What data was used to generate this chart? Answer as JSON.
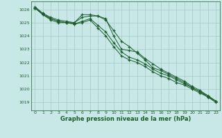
{
  "xlabel": "Graphe pression niveau de la mer (hPa)",
  "background_color": "#c8e8e8",
  "grid_color": "#a8c8c8",
  "line_color": "#1a5c28",
  "ylim": [
    1018.4,
    1026.6
  ],
  "xlim": [
    -0.5,
    23.5
  ],
  "yticks": [
    1019,
    1020,
    1021,
    1022,
    1023,
    1024,
    1025,
    1026
  ],
  "xticks": [
    0,
    1,
    2,
    3,
    4,
    5,
    6,
    7,
    8,
    9,
    10,
    11,
    12,
    13,
    14,
    15,
    16,
    17,
    18,
    19,
    20,
    21,
    22,
    23
  ],
  "series": [
    [
      1026.1,
      1025.6,
      1025.3,
      1025.1,
      1025.0,
      1025.0,
      1025.4,
      1025.5,
      1025.5,
      1025.2,
      1024.4,
      1023.6,
      1023.2,
      1022.7,
      1022.2,
      1021.6,
      1021.4,
      1021.1,
      1020.8,
      1020.5,
      1020.1,
      1019.8,
      1019.4,
      1019.0
    ],
    [
      1026.1,
      1025.6,
      1025.2,
      1025.0,
      1025.0,
      1024.9,
      1025.0,
      1025.2,
      1024.6,
      1024.0,
      1023.2,
      1022.5,
      1022.2,
      1022.0,
      1021.7,
      1021.3,
      1021.0,
      1020.8,
      1020.5,
      1020.3,
      1020.0,
      1019.7,
      1019.4,
      1019.1
    ],
    [
      1026.1,
      1025.7,
      1025.3,
      1025.1,
      1025.0,
      1024.9,
      1025.1,
      1025.3,
      1024.8,
      1024.3,
      1023.5,
      1022.8,
      1022.4,
      1022.2,
      1021.9,
      1021.5,
      1021.2,
      1021.0,
      1020.7,
      1020.4,
      1020.1,
      1019.8,
      1019.5,
      1019.1
    ],
    [
      1026.2,
      1025.7,
      1025.4,
      1025.2,
      1025.1,
      1025.0,
      1025.6,
      1025.6,
      1025.5,
      1025.3,
      1024.0,
      1023.0,
      1022.9,
      1022.8,
      1022.3,
      1021.9,
      1021.5,
      1021.2,
      1020.9,
      1020.6,
      1020.2,
      1019.9,
      1019.5,
      1019.1
    ]
  ]
}
